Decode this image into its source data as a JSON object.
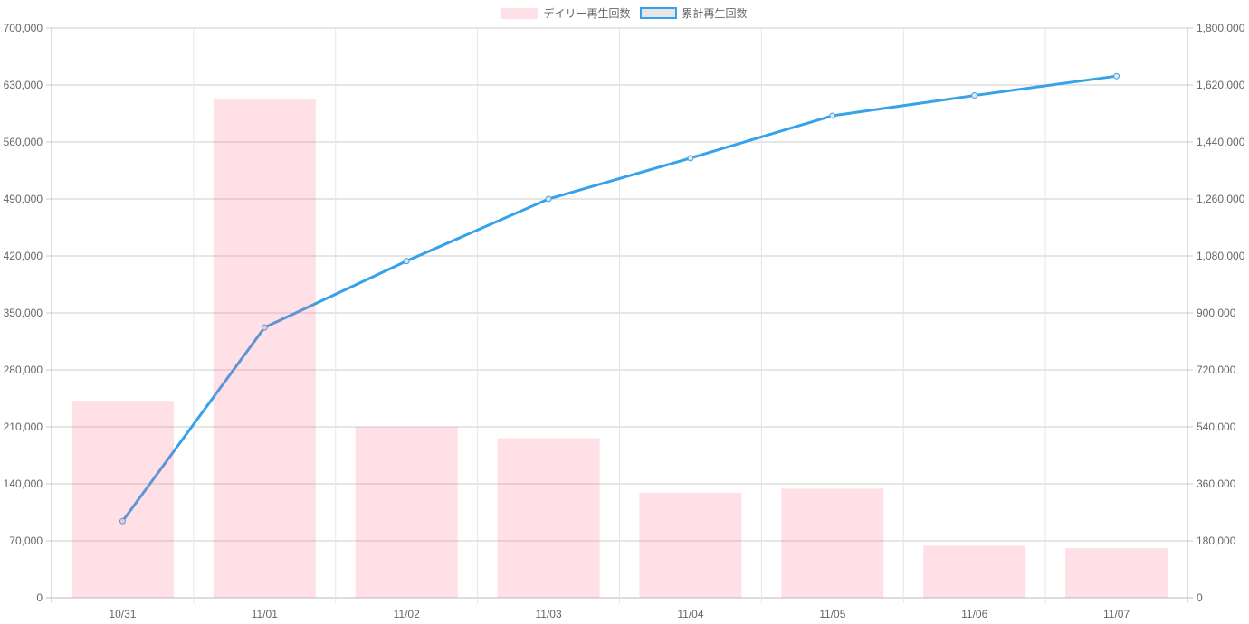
{
  "chart_data": {
    "type": "bar",
    "title": "",
    "categories": [
      "10/31",
      "11/01",
      "11/02",
      "11/03",
      "11/04",
      "11/05",
      "11/06",
      "11/07"
    ],
    "series": [
      {
        "name": "デイリー再生回数",
        "type": "bar",
        "axis": "left",
        "color": "#ff6384",
        "values": [
          242000,
          612000,
          210000,
          196000,
          129000,
          134000,
          64000,
          61000
        ]
      },
      {
        "name": "累計再生回数",
        "type": "line",
        "axis": "right",
        "color": "#36a2eb",
        "values": [
          242000,
          854000,
          1064000,
          1260000,
          1389000,
          1523000,
          1587000,
          1648000
        ]
      }
    ],
    "y_left": {
      "range": [
        0,
        700000
      ],
      "ticks": [
        "0",
        "70,000",
        "140,000",
        "210,000",
        "280,000",
        "350,000",
        "420,000",
        "490,000",
        "560,000",
        "630,000",
        "700,000"
      ]
    },
    "y_right": {
      "range": [
        0,
        1800000
      ],
      "ticks": [
        "0",
        "180,000",
        "360,000",
        "540,000",
        "720,000",
        "900,000",
        "1,080,000",
        "1,260,000",
        "1,440,000",
        "1,620,000",
        "1,800,000"
      ]
    },
    "grid": true,
    "legend": "top-center"
  }
}
